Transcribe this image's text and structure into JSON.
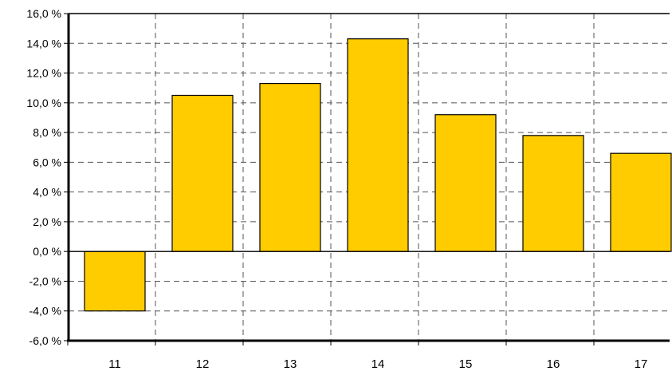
{
  "chart_data": {
    "type": "bar",
    "categories": [
      "11",
      "12",
      "13",
      "14",
      "15",
      "16",
      "17"
    ],
    "values": [
      -4.0,
      10.5,
      11.3,
      14.3,
      9.2,
      7.8,
      6.6
    ],
    "ylim": [
      -6,
      16
    ],
    "yticks": [
      -6,
      -4,
      -2,
      0,
      2,
      4,
      6,
      8,
      10,
      12,
      14,
      16
    ],
    "ytick_labels": [
      "-6,0 %",
      "-4,0 %",
      "-2,0 %",
      "0,0 %",
      "2,0 %",
      "4,0 %",
      "6,0 %",
      "8,0 %",
      "10,0 %",
      "12,0 %",
      "14,0 %",
      "16,0 %"
    ],
    "title": "",
    "xlabel": "",
    "ylabel": "",
    "grid": true,
    "legend": "none",
    "bar_color": "#FFCC00"
  }
}
